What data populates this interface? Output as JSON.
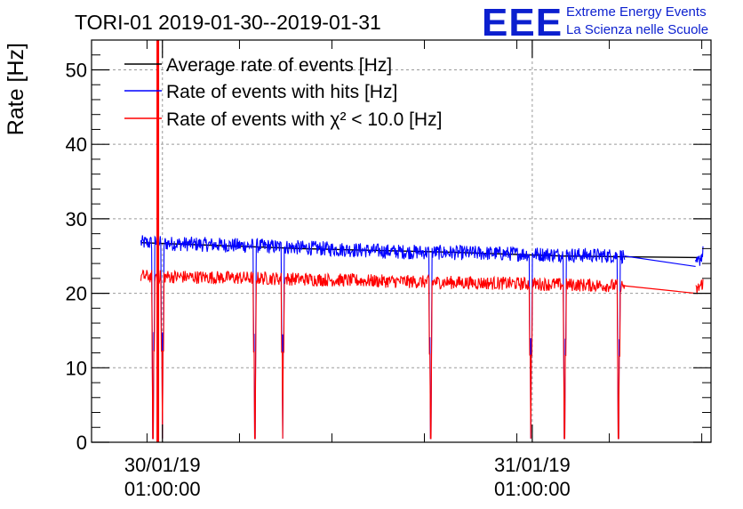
{
  "chart_data": {
    "type": "line",
    "title": "TORI-01 2019-01-30--2019-01-31",
    "ylabel": "Rate [Hz]",
    "xlabel": "",
    "ylim": [
      0,
      54
    ],
    "x_unit": "hours since 2019-01-29 00:00:00",
    "xlim": [
      20.4,
      60.6
    ],
    "yticks": [
      0,
      10,
      20,
      30,
      40,
      50
    ],
    "xticks": [
      {
        "line1": "30/01/19",
        "line2": "01:00:00",
        "x": 25
      },
      {
        "line1": "31/01/19",
        "line2": "01:00:00",
        "x": 49
      }
    ],
    "grid": true,
    "legend": "top-left",
    "series": [
      {
        "name": "Average rate of events [Hz]",
        "color": "#000000",
        "points": [
          [
            23.6,
            26.8
          ],
          [
            34.0,
            26.0
          ],
          [
            44.0,
            25.5
          ],
          [
            51.0,
            25.0
          ],
          [
            55.0,
            24.9
          ],
          [
            59.8,
            24.8
          ]
        ]
      },
      {
        "name": "Rate of events with hits [Hz]",
        "color": "#0000ff",
        "level": [
          [
            23.6,
            26.8
          ],
          [
            32.0,
            26.3
          ],
          [
            40.0,
            25.6
          ],
          [
            48.0,
            25.3
          ],
          [
            55.0,
            25.0
          ]
        ],
        "gap": [
          [
            55.0,
            25.0
          ],
          [
            59.6,
            23.6
          ]
        ],
        "tail": [
          [
            59.6,
            23.5
          ],
          [
            60.1,
            25.5
          ]
        ],
        "dips": [
          24.4,
          25.0,
          31.0,
          32.8,
          42.4,
          48.9,
          51.1,
          54.6
        ],
        "noise": 1.0
      },
      {
        "name": "Rate of events with χ² < 10.0 [Hz]",
        "color": "#ff0000",
        "level": [
          [
            23.6,
            22.3
          ],
          [
            32.0,
            22.0
          ],
          [
            40.0,
            21.6
          ],
          [
            48.0,
            21.3
          ],
          [
            55.0,
            21.0
          ]
        ],
        "gap": [
          [
            55.0,
            21.0
          ],
          [
            59.6,
            20.0
          ]
        ],
        "tail": [
          [
            59.6,
            20.2
          ],
          [
            60.1,
            21.5
          ]
        ],
        "dips": [
          24.4,
          25.0,
          31.0,
          32.8,
          42.4,
          48.9,
          51.1,
          54.6
        ],
        "spike": {
          "x": 24.7,
          "y": 54
        },
        "noise": 0.9
      }
    ]
  },
  "logo": {
    "letters": "EEE",
    "line1": "Extreme Energy Events",
    "line2": "La Scienza nelle Scuole"
  }
}
